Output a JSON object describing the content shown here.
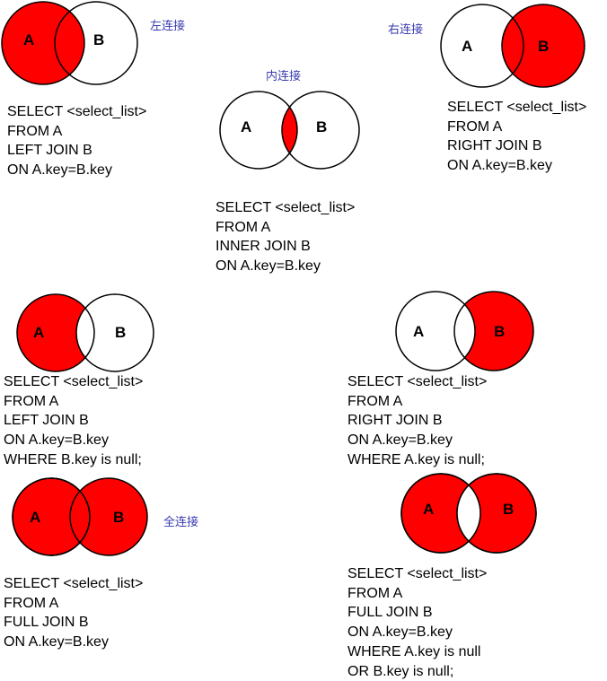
{
  "colors": {
    "fill": "#ff0000",
    "stroke": "#000000"
  },
  "circle_labels": {
    "a": "A",
    "b": "B"
  },
  "diagrams": [
    {
      "caption": "左连接",
      "sql": [
        "SELECT <select_list>",
        "FROM A",
        "LEFT JOIN B",
        "ON  A.key=B.key"
      ]
    },
    {
      "caption": "内连接",
      "sql": [
        "SELECT <select_list>",
        "FROM A",
        "INNER  JOIN B",
        "ON  A.key=B.key"
      ]
    },
    {
      "caption": "右连接",
      "sql": [
        "SELECT <select_list>",
        "FROM A",
        "RIGHT JOIN B",
        "ON  A.key=B.key"
      ]
    },
    {
      "caption": "",
      "sql": [
        "SELECT <select_list>",
        "FROM A",
        "LEFT JOIN B",
        "ON  A.key=B.key",
        "WHERE B.key is null;"
      ]
    },
    {
      "caption": "",
      "sql": [
        "SELECT <select_list>",
        "FROM A",
        "RIGHT JOIN B",
        "ON  A.key=B.key",
        "WHERE A.key is null;"
      ]
    },
    {
      "caption": "全连接",
      "sql": [
        "SELECT <select_list>",
        "FROM A",
        "FULL JOIN B",
        "ON  A.key=B.key"
      ]
    },
    {
      "caption": "",
      "sql": [
        "SELECT <select_list>",
        "FROM A",
        "FULL JOIN B",
        "ON  A.key=B.key",
        "WHERE A.key is null",
        "OR B.key is null;"
      ]
    }
  ]
}
